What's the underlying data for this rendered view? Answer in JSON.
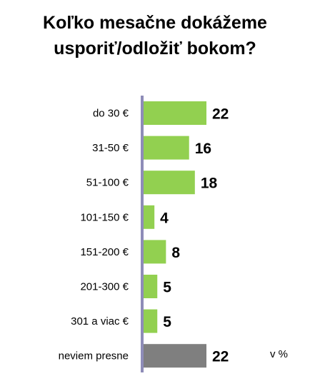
{
  "chart_data": {
    "type": "bar",
    "orientation": "horizontal",
    "title": [
      "Koľko mesačne dokážeme",
      "usporiť/odložiť bokom?"
    ],
    "categories": [
      "do 30 €",
      "31-50 €",
      "51-100 €",
      "101-150 €",
      "151-200 €",
      "201-300 €",
      "301 a viac €",
      "neviem presne"
    ],
    "values": [
      22,
      16,
      18,
      4,
      8,
      5,
      5,
      22
    ],
    "bar_colors": [
      "#92d050",
      "#92d050",
      "#92d050",
      "#92d050",
      "#92d050",
      "#92d050",
      "#92d050",
      "#7f7f7f"
    ],
    "axis_color": "#8e8cb8",
    "unit_label": "v %",
    "xlim": [
      0,
      22
    ],
    "grid": false,
    "legend": "none"
  }
}
